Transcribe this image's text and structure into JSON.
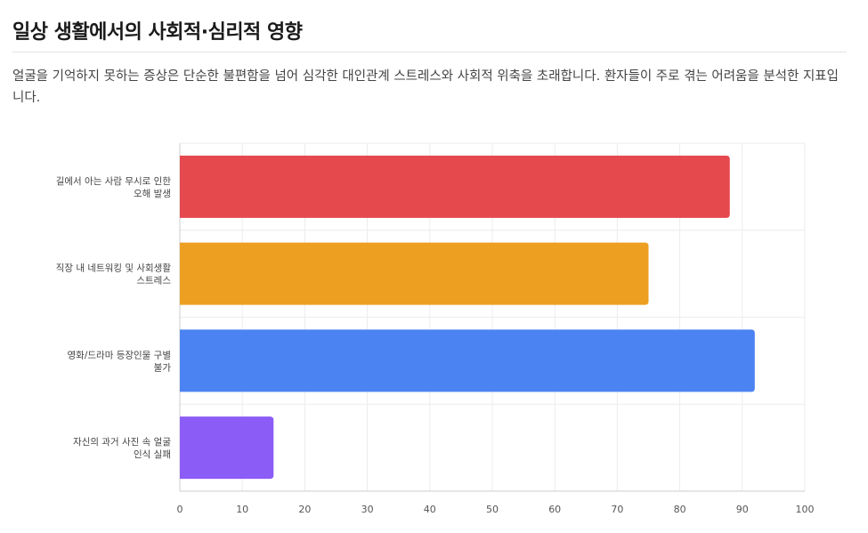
{
  "section": {
    "title": "일상 생활에서의 사회적·심리적 영향",
    "description": "얼굴을 기억하지 못하는 증상은 단순한 불편함을 넘어 심각한 대인관계 스트레스와 사회적 위축을 초래합니다. 환자들이 주로 겪는 어려움을 분석한 지표입니다."
  },
  "chart_data": {
    "type": "bar",
    "orientation": "horizontal",
    "categories": [
      [
        "길에서 아는 사람 무시로 인한",
        "오해 발생"
      ],
      [
        "직장 내 네트워킹 및 사회생활",
        "스트레스"
      ],
      [
        "영화/드라마 등장인물 구별",
        "불가"
      ],
      [
        "자신의 과거 사진 속 얼굴",
        "인식 실패"
      ]
    ],
    "values": [
      88,
      75,
      92,
      15
    ],
    "colors": [
      "#e5484d",
      "#ed9f22",
      "#4b83f2",
      "#8b5cf6"
    ],
    "xlim": [
      0,
      100
    ],
    "xticks": [
      "0",
      "10",
      "20",
      "30",
      "40",
      "50",
      "60",
      "70",
      "80",
      "90",
      "100"
    ],
    "grid": true,
    "legend": "none"
  }
}
